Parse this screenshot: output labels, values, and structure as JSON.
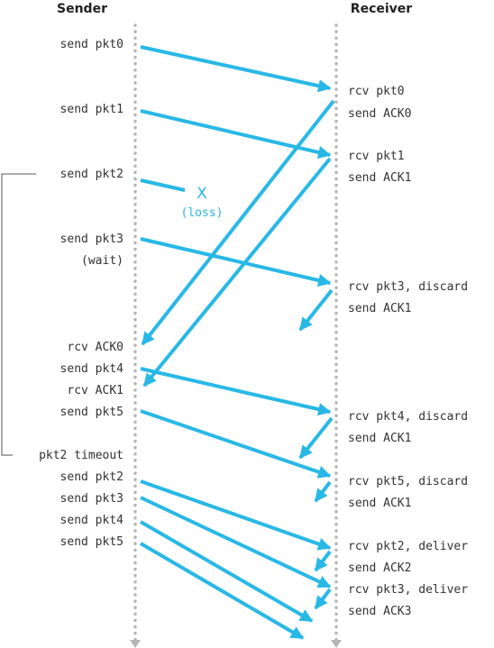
{
  "headers": {
    "sender": "Sender",
    "receiver": "Receiver"
  },
  "sender_labels": [
    "send pkt0",
    "send pkt1",
    "send pkt2",
    "send pkt3",
    "(wait)",
    "rcv ACK0",
    "send pkt4",
    "rcv ACK1",
    "send pkt5",
    "pkt2 timeout",
    "send pkt2",
    "send pkt3",
    "send pkt4",
    "send pkt5"
  ],
  "receiver_labels": [
    "rcv pkt0",
    "send ACK0",
    "rcv pkt1",
    "send ACK1",
    "rcv pkt3, discard",
    "send ACK1",
    "rcv pkt4, discard",
    "send ACK1",
    "rcv pkt5, discard",
    "send ACK1",
    "rcv pkt2, deliver",
    "send ACK2",
    "rcv pkt3, deliver",
    "send ACK3"
  ],
  "loss": {
    "mark": "X",
    "label": "(loss)"
  },
  "colors": {
    "arrow": "#29b8e6",
    "timeline": "#b5b5b5",
    "bracket": "#555555"
  }
}
